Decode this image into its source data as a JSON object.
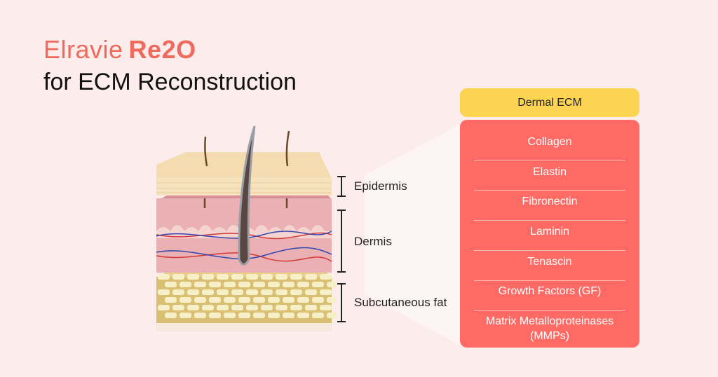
{
  "header": {
    "brand_light": "Elravie",
    "brand_bold": "Re2O",
    "subtitle": "for ECM Reconstruction"
  },
  "diagram": {
    "layers": [
      {
        "label": "Epidermis"
      },
      {
        "label": "Dermis"
      },
      {
        "label": "Subcutaneous fat"
      }
    ]
  },
  "ecm_panel": {
    "title": "Dermal ECM",
    "items": [
      "Collagen",
      "Elastin",
      "Fibronectin",
      "Laminin",
      "Tenascin",
      "Growth Factors (GF)",
      "Matrix Metalloproteinases (MMPs)"
    ]
  },
  "colors": {
    "background": "#fcecec",
    "brand": "#ee6a5c",
    "header_box": "#fdd352",
    "panel": "#ff6b64"
  }
}
